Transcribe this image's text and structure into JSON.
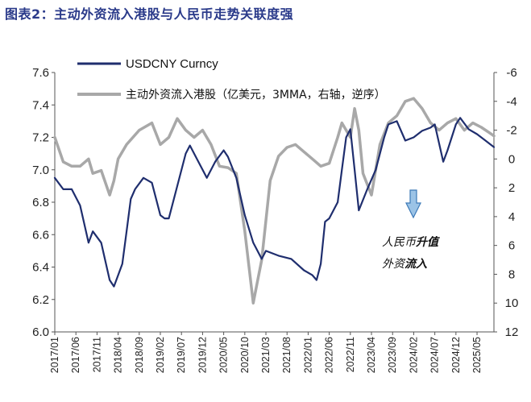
{
  "header": {
    "title_lead": "图表2：",
    "title_text": "主动外资流入港股与人民币走势关联度强"
  },
  "chart_data": {
    "type": "line",
    "title": "主动外资流入港股与人民币走势关联度强",
    "x_tick_labels": [
      "2017/01",
      "2017/06",
      "2017/11",
      "2018/04",
      "2018/09",
      "2019/02",
      "2019/07",
      "2019/12",
      "2020/05",
      "2020/10",
      "2021/03",
      "2021/08",
      "2022/01",
      "2022/06",
      "2022/11",
      "2023/04",
      "2023/09",
      "2024/02",
      "2024/07",
      "2024/12",
      "2025/05"
    ],
    "x_range": [
      "2017/01",
      "2025/09"
    ],
    "y_left": {
      "range": [
        6.0,
        7.6
      ],
      "ticks": [
        "6.0",
        "6.2",
        "6.4",
        "6.6",
        "6.8",
        "7.0",
        "7.2",
        "7.4",
        "7.6"
      ]
    },
    "y_right": {
      "range": [
        -6,
        12
      ],
      "reversed": true,
      "ticks": [
        "-6",
        "-4",
        "-2",
        "0",
        "2",
        "4",
        "6",
        "8",
        "10",
        "12"
      ]
    },
    "legend_placement": "top-left",
    "grid": false,
    "series": [
      {
        "name": "USDCNY Curncy",
        "axis": "left",
        "color": "#1f2e6e",
        "x": [
          "2017/01",
          "2017/03",
          "2017/05",
          "2017/07",
          "2017/09",
          "2017/10",
          "2017/12",
          "2018/02",
          "2018/03",
          "2018/04",
          "2018/05",
          "2018/06",
          "2018/07",
          "2018/08",
          "2018/10",
          "2018/12",
          "2019/02",
          "2019/03",
          "2019/04",
          "2019/06",
          "2019/08",
          "2019/09",
          "2019/11",
          "2020/01",
          "2020/03",
          "2020/05",
          "2020/06",
          "2020/08",
          "2020/10",
          "2020/12",
          "2021/02",
          "2021/03",
          "2021/06",
          "2021/09",
          "2021/12",
          "2022/02",
          "2022/03",
          "2022/04",
          "2022/05",
          "2022/06",
          "2022/08",
          "2022/09",
          "2022/10",
          "2022/11",
          "2022/12",
          "2023/01",
          "2023/03",
          "2023/05",
          "2023/07",
          "2023/08",
          "2023/10",
          "2023/12",
          "2024/02",
          "2024/04",
          "2024/06",
          "2024/07",
          "2024/09",
          "2024/10",
          "2024/12",
          "2025/01",
          "2025/03",
          "2025/05",
          "2025/07",
          "2025/09"
        ],
        "y": [
          6.95,
          6.88,
          6.88,
          6.78,
          6.55,
          6.62,
          6.55,
          6.32,
          6.28,
          6.35,
          6.42,
          6.62,
          6.82,
          6.88,
          6.95,
          6.92,
          6.72,
          6.7,
          6.7,
          6.9,
          7.1,
          7.15,
          7.05,
          6.95,
          7.05,
          7.12,
          7.08,
          6.95,
          6.72,
          6.55,
          6.45,
          6.5,
          6.47,
          6.45,
          6.38,
          6.35,
          6.32,
          6.42,
          6.68,
          6.7,
          6.8,
          7.0,
          7.2,
          7.25,
          7.0,
          6.75,
          6.88,
          7.0,
          7.2,
          7.28,
          7.3,
          7.18,
          7.2,
          7.24,
          7.26,
          7.28,
          7.05,
          7.12,
          7.28,
          7.32,
          7.25,
          7.22,
          7.18,
          7.14
        ]
      },
      {
        "name": "主动外资流入港股（亿美元，3MMA，右轴，逆序）",
        "axis": "right",
        "color": "#a8a8a8",
        "x": [
          "2017/01",
          "2017/03",
          "2017/05",
          "2017/07",
          "2017/09",
          "2017/10",
          "2017/12",
          "2018/02",
          "2018/03",
          "2018/04",
          "2018/06",
          "2018/09",
          "2018/12",
          "2019/02",
          "2019/04",
          "2019/06",
          "2019/08",
          "2019/10",
          "2019/12",
          "2020/02",
          "2020/04",
          "2020/06",
          "2020/08",
          "2020/10",
          "2020/12",
          "2021/01",
          "2021/02",
          "2021/04",
          "2021/06",
          "2021/08",
          "2021/10",
          "2021/12",
          "2022/02",
          "2022/04",
          "2022/06",
          "2022/08",
          "2022/09",
          "2022/10",
          "2022/11",
          "2022/12",
          "2023/01",
          "2023/02",
          "2023/04",
          "2023/06",
          "2023/08",
          "2023/10",
          "2023/12",
          "2024/02",
          "2024/04",
          "2024/06",
          "2024/08",
          "2024/10",
          "2024/12",
          "2025/02",
          "2025/04",
          "2025/06",
          "2025/08",
          "2025/09"
        ],
        "y": [
          -1.5,
          0.2,
          0.5,
          0.5,
          0.0,
          1.0,
          0.8,
          2.5,
          1.5,
          0.0,
          -1.0,
          -2.0,
          -2.5,
          -1.0,
          -1.5,
          -2.8,
          -2.0,
          -1.5,
          -2.0,
          -1.0,
          0.5,
          0.6,
          1.0,
          5.0,
          10.0,
          8.5,
          7.0,
          1.5,
          -0.2,
          -0.8,
          -1.0,
          -0.5,
          0.0,
          0.5,
          0.3,
          -1.5,
          -2.5,
          -2.0,
          -1.5,
          -3.5,
          -2.0,
          1.0,
          2.5,
          -1.0,
          -2.5,
          -3.0,
          -4.0,
          -4.2,
          -3.5,
          -2.5,
          -2.0,
          -2.5,
          -2.8,
          -2.0,
          -2.5,
          -2.2,
          -1.8,
          -1.6
        ]
      }
    ],
    "annotation": {
      "arrow": "down",
      "line1_normal": "人民币",
      "line1_bold": "升值",
      "line2_normal": "外资",
      "line2_bold": "流入"
    }
  },
  "style": {
    "left_series_color": "#1f2e6e",
    "right_series_color": "#a8a8a8",
    "arrow_fill": "#9bc3e6",
    "arrow_stroke": "#3d7ab8",
    "title_color": "#2a3a8a"
  }
}
